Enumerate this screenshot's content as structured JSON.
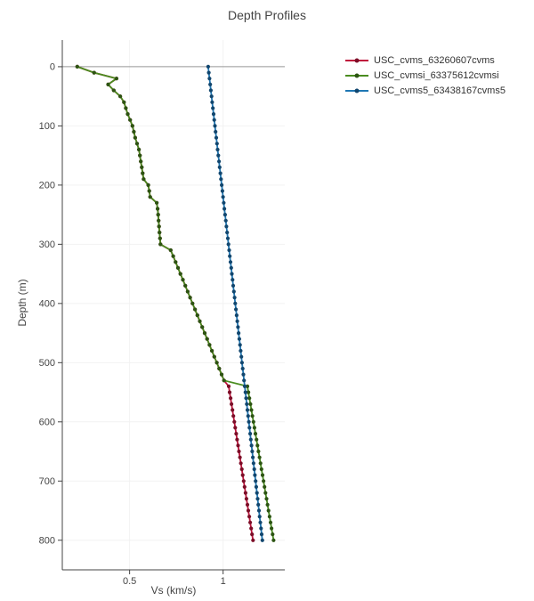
{
  "chart_data": {
    "type": "line",
    "title": "Depth Profiles",
    "xlabel": "Vs (km/s)",
    "ylabel": "Depth (m)",
    "x_range": [
      0.14,
      1.33
    ],
    "depth_range": [
      -45,
      850
    ],
    "x_ticks": [
      {
        "v": 0.5,
        "label": "0.5"
      },
      {
        "v": 1,
        "label": "1"
      }
    ],
    "y_ticks": [
      0,
      100,
      200,
      300,
      400,
      500,
      600,
      700,
      800
    ],
    "depth_min_m": 0,
    "depth_max_m": 800,
    "marker_step_m": 10,
    "zero_line_depth": 0,
    "grid": true,
    "legend_position": "top-right",
    "colors": {
      "axis_line": "#444444",
      "zero_line": "#999999",
      "grid_line": "#f2f2f2",
      "tick_text": "#444444",
      "title_text": "#444444",
      "legend_text": "#333333"
    },
    "series": [
      {
        "name": "USC_cvms_63260607cvms",
        "line_color": "#c0143c",
        "marker_color": "#7c0d27",
        "breakpoints_depth_vs": [
          [
            0,
            0.22
          ],
          [
            10,
            0.31
          ],
          [
            20,
            0.43
          ],
          [
            30,
            0.385
          ],
          [
            40,
            0.415
          ],
          [
            50,
            0.45
          ],
          [
            60,
            0.47
          ],
          [
            80,
            0.49
          ],
          [
            100,
            0.515
          ],
          [
            120,
            0.53
          ],
          [
            140,
            0.55
          ],
          [
            160,
            0.56
          ],
          [
            190,
            0.575
          ],
          [
            200,
            0.6
          ],
          [
            220,
            0.61
          ],
          [
            230,
            0.645
          ],
          [
            240,
            0.65
          ],
          [
            300,
            0.665
          ],
          [
            310,
            0.72
          ],
          [
            530,
            1.005
          ],
          [
            540,
            1.03
          ],
          [
            800,
            1.16
          ]
        ]
      },
      {
        "name": "USC_cvmsi_63375612cvmsi",
        "line_color": "#4a8c1f",
        "marker_color": "#2c5412",
        "breakpoints_depth_vs": [
          [
            0,
            0.22
          ],
          [
            10,
            0.31
          ],
          [
            20,
            0.43
          ],
          [
            30,
            0.385
          ],
          [
            40,
            0.415
          ],
          [
            50,
            0.45
          ],
          [
            60,
            0.47
          ],
          [
            80,
            0.49
          ],
          [
            100,
            0.515
          ],
          [
            120,
            0.53
          ],
          [
            140,
            0.55
          ],
          [
            160,
            0.56
          ],
          [
            190,
            0.575
          ],
          [
            200,
            0.6
          ],
          [
            220,
            0.61
          ],
          [
            230,
            0.645
          ],
          [
            240,
            0.65
          ],
          [
            300,
            0.665
          ],
          [
            310,
            0.72
          ],
          [
            530,
            1.005
          ],
          [
            540,
            1.13
          ],
          [
            800,
            1.27
          ]
        ]
      },
      {
        "name": "USC_cvms5_63438167cvms5",
        "line_color": "#1f77b4",
        "marker_color": "#11466e",
        "breakpoints_depth_vs": [
          [
            0,
            0.92
          ],
          [
            800,
            1.21
          ]
        ]
      }
    ]
  }
}
